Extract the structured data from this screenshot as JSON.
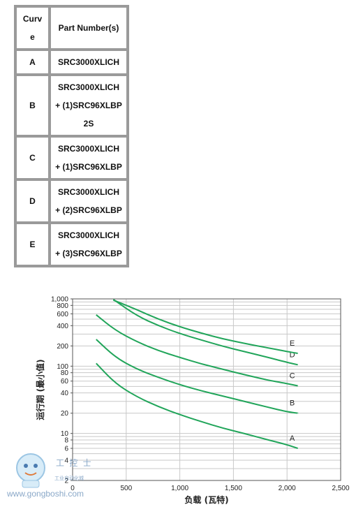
{
  "table": {
    "headers": [
      "Curv\ne",
      "Part Number(s)"
    ],
    "rows": [
      {
        "curve": "A",
        "parts": "SRC3000XLICH"
      },
      {
        "curve": "B",
        "parts": "SRC3000XLICH\n+ (1)SRC96XLBP\n2S"
      },
      {
        "curve": "C",
        "parts": "SRC3000XLICH\n+ (1)SRC96XLBP"
      },
      {
        "curve": "D",
        "parts": "SRC3000XLICH\n+ (2)SRC96XLBP"
      },
      {
        "curve": "E",
        "parts": "SRC3000XLICH\n+ (3)SRC96XLBP"
      }
    ]
  },
  "colors": {
    "curve": "#21a55a",
    "grid": "#c8c8c8",
    "border": "#9a9a9a"
  },
  "chart_data": {
    "type": "line",
    "xlabel": "负载 (瓦特)",
    "ylabel": "运行期 (最小值)",
    "x_scale": "linear",
    "y_scale": "log",
    "xlim": [
      0,
      2500
    ],
    "ylim": [
      2,
      1000
    ],
    "x_ticks": [
      "0",
      "500",
      "1,000",
      "1,500",
      "2,000",
      "2,500"
    ],
    "x_tick_values": [
      0,
      500,
      1000,
      1500,
      2000,
      2500
    ],
    "y_ticks": [
      "1,000",
      "800",
      "600",
      "400",
      "200",
      "100",
      "80",
      "60",
      "40",
      "20",
      "10",
      "8",
      "6",
      "4",
      "2"
    ],
    "y_tick_values": [
      1000,
      800,
      600,
      400,
      200,
      100,
      80,
      60,
      40,
      20,
      10,
      8,
      6,
      4,
      2
    ],
    "grid": true,
    "series": [
      {
        "name": "A",
        "x": [
          220,
          400,
          600,
          800,
          1000,
          1200,
          1400,
          1600,
          1800,
          2000,
          2100
        ],
        "y": [
          110,
          55,
          35,
          25,
          19,
          15,
          12,
          10,
          8.2,
          6.8,
          6
        ]
      },
      {
        "name": "B",
        "x": [
          220,
          400,
          600,
          800,
          1000,
          1200,
          1400,
          1600,
          1800,
          2000,
          2100
        ],
        "y": [
          250,
          135,
          90,
          68,
          53,
          43,
          36,
          30,
          25,
          21,
          20
        ]
      },
      {
        "name": "C",
        "x": [
          220,
          400,
          600,
          800,
          1000,
          1200,
          1400,
          1600,
          1800,
          2000,
          2100
        ],
        "y": [
          580,
          340,
          230,
          170,
          135,
          108,
          90,
          75,
          63,
          55,
          51
        ]
      },
      {
        "name": "D",
        "x": [
          380,
          600,
          800,
          1000,
          1200,
          1400,
          1600,
          1800,
          2000,
          2100
        ],
        "y": [
          980,
          560,
          400,
          305,
          245,
          198,
          165,
          138,
          114,
          105
        ]
      },
      {
        "name": "E",
        "x": [
          380,
          600,
          800,
          1000,
          1200,
          1400,
          1600,
          1800,
          2000,
          2100
        ],
        "y": [
          960,
          690,
          500,
          385,
          310,
          255,
          218,
          190,
          165,
          155
        ]
      }
    ]
  },
  "watermark": {
    "brand": "工 控 士",
    "sub": "工业自动化城",
    "url": "www.gongboshi.com"
  }
}
